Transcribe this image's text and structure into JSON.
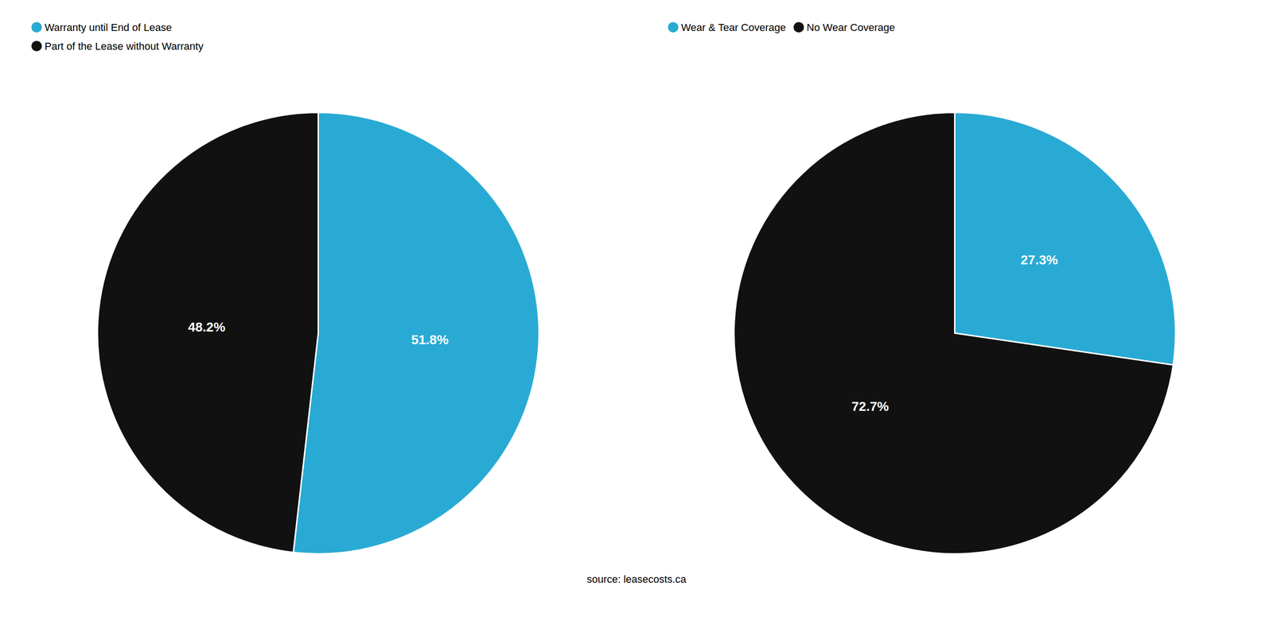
{
  "chart_data": [
    {
      "type": "pie",
      "categories": [
        "Warranty until End of Lease",
        "Part of the Lease without Warranty"
      ],
      "values": [
        51.8,
        48.2
      ],
      "value_labels": [
        "51.8%",
        "48.2%"
      ],
      "colors": [
        "#29aad4",
        "#111111"
      ],
      "data_labels": true,
      "legend": "upper left",
      "annotations": [
        "source: leasecosts.ca"
      ]
    },
    {
      "type": "pie",
      "categories": [
        "Wear & Tear Coverage",
        "No Wear Coverage"
      ],
      "values": [
        27.3,
        72.7
      ],
      "value_labels": [
        "27.3%",
        "72.7%"
      ],
      "colors": [
        "#29aad4",
        "#111111"
      ],
      "data_labels": true,
      "legend": "upper left"
    }
  ]
}
